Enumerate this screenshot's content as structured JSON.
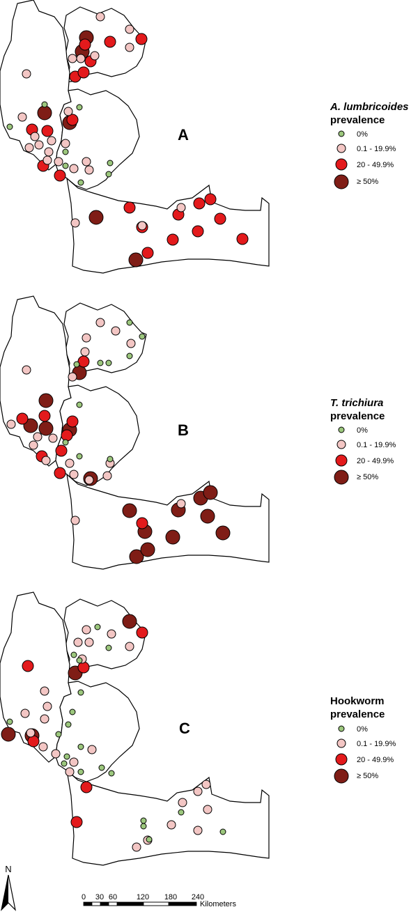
{
  "colors": {
    "zero": "#9cc77d",
    "low": "#f3c6c4",
    "mid": "#e31a1c",
    "high": "#7f1d16",
    "outline": "#000000",
    "land": "#ffffff"
  },
  "classes": [
    "zero",
    "low",
    "mid",
    "high"
  ],
  "panels": [
    {
      "letter": "A",
      "legend": {
        "title_italic": "A. lumbricoides",
        "title_rest": "prevalence",
        "items": [
          "0%",
          "0.1 - 19.9%",
          "20 - 49.9%",
          "≥ 50%"
        ]
      }
    },
    {
      "letter": "B",
      "legend": {
        "title_italic": "T. trichiura",
        "title_rest": "prevalence",
        "items": [
          "0%",
          "0.1 - 19.9%",
          "20 - 49.9%",
          "≥ 50%"
        ]
      }
    },
    {
      "letter": "C",
      "legend": {
        "title_italic": "",
        "title_rest": "Hookworm prevalence",
        "items": [
          "0%",
          "0.1 - 19.9%",
          "20 - 49.9%",
          "≥ 50%"
        ]
      }
    }
  ],
  "north": {
    "label": "N"
  },
  "scalebar": {
    "ticks": [
      "0",
      "30",
      "60",
      "120",
      "180",
      "240"
    ],
    "unit": "Kilometers"
  }
}
